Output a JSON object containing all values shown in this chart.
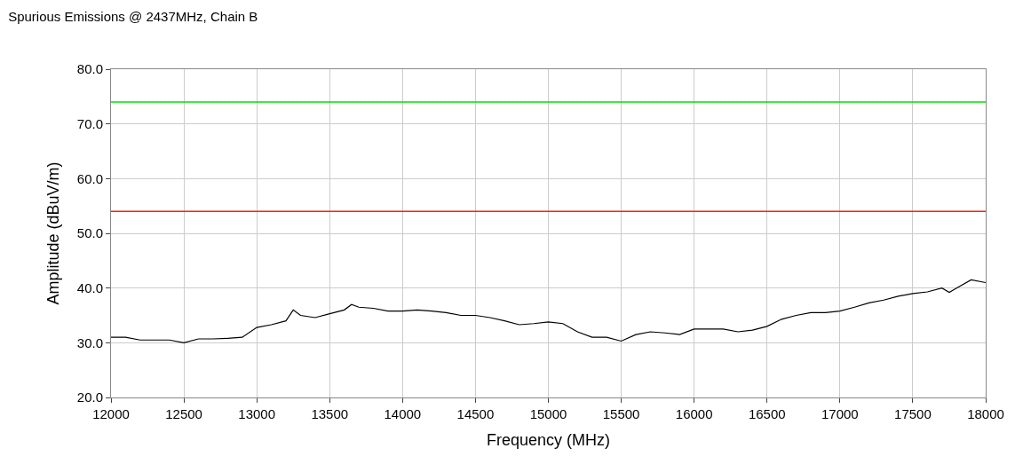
{
  "chart_data": {
    "type": "line",
    "title": "Spurious Emissions @ 2437MHz, Chain B",
    "xlabel": "Frequency (MHz)",
    "ylabel": "Amplitude (dBuV/m)",
    "x": [
      12000,
      12100,
      12200,
      12300,
      12400,
      12500,
      12600,
      12700,
      12800,
      12900,
      13000,
      13100,
      13200,
      13250,
      13300,
      13400,
      13500,
      13600,
      13650,
      13700,
      13800,
      13900,
      14000,
      14100,
      14200,
      14300,
      14400,
      14500,
      14600,
      14700,
      14800,
      14900,
      15000,
      15100,
      15200,
      15300,
      15400,
      15500,
      15600,
      15700,
      15800,
      15900,
      16000,
      16100,
      16200,
      16300,
      16400,
      16500,
      16600,
      16700,
      16800,
      16900,
      17000,
      17100,
      17200,
      17300,
      17400,
      17500,
      17600,
      17700,
      17750,
      17800,
      17900,
      18000
    ],
    "series": [
      {
        "color": "#000000",
        "values": [
          31,
          31,
          30.5,
          30.5,
          30.5,
          30,
          30.7,
          30.7,
          30.8,
          31,
          32.8,
          33.3,
          34,
          36,
          35,
          34.6,
          35.3,
          36,
          37,
          36.5,
          36.3,
          35.8,
          35.8,
          36,
          35.8,
          35.5,
          35,
          35,
          34.6,
          34,
          33.3,
          33.5,
          33.8,
          33.5,
          32,
          31,
          31,
          30.3,
          31.5,
          32,
          31.8,
          31.5,
          32.5,
          32.5,
          32.5,
          32,
          32.3,
          33,
          34.3,
          35,
          35.5,
          35.5,
          35.8,
          36.5,
          37.3,
          37.8,
          38.5,
          39,
          39.3,
          40,
          39.2,
          40,
          41.5,
          41
        ]
      }
    ],
    "xlim": [
      12000,
      18000
    ],
    "xticks": [
      12000,
      12500,
      13000,
      13500,
      14000,
      14500,
      15000,
      15500,
      16000,
      16500,
      17000,
      17500,
      18000
    ],
    "ylim": [
      20,
      80
    ],
    "yticks": [
      {
        "value": 20,
        "label": "20.0"
      },
      {
        "value": 30,
        "label": "30.0"
      },
      {
        "value": 40,
        "label": "40.0"
      },
      {
        "value": 50,
        "label": "50.0"
      },
      {
        "value": 60,
        "label": "60.0"
      },
      {
        "value": 70,
        "label": "70.0"
      },
      {
        "value": 80,
        "label": "80.0"
      }
    ],
    "ref_lines": [
      {
        "axis": "y",
        "value": 74,
        "color": "#00e000"
      },
      {
        "axis": "y",
        "value": 54,
        "color": "#ff2000"
      }
    ],
    "grid": true,
    "line_style": "solid",
    "marker": "none"
  }
}
